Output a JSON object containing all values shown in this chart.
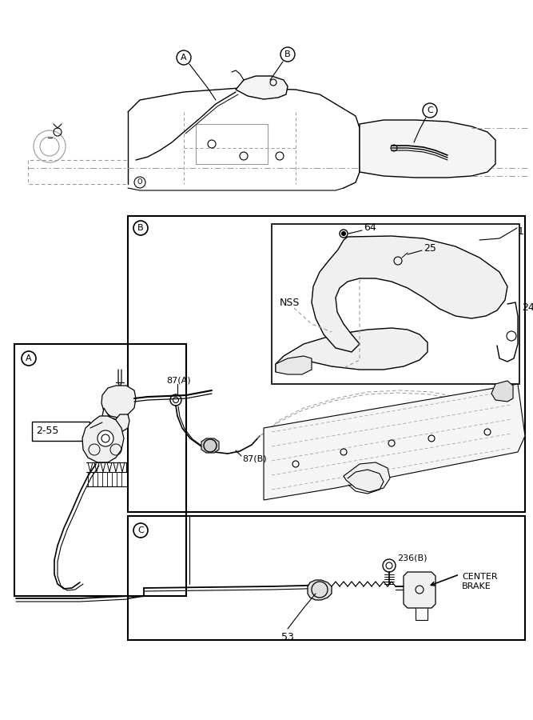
{
  "bg_color": "#ffffff",
  "line_color": "#000000",
  "dash_color": "#999999",
  "fig_width": 6.67,
  "fig_height": 9.0,
  "labels": {
    "label_64": "64",
    "label_1": "1",
    "label_25": "25",
    "label_24": "24",
    "label_NSS": "NSS",
    "label_87A": "87(A)",
    "label_87B": "87(B)",
    "label_255": "2-55",
    "label_236B": "236(B)",
    "label_center_brake": "CENTER\nBRAKE",
    "label_53": "53"
  }
}
